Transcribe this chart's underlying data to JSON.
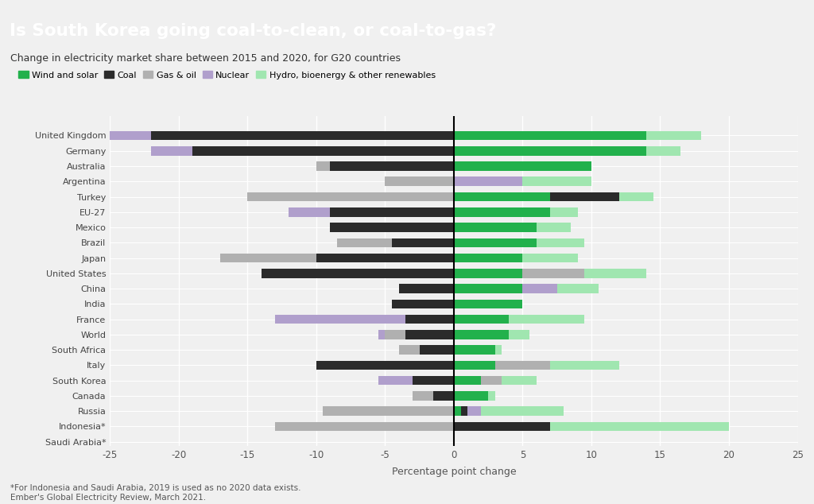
{
  "title": "Is South Korea going coal-to-clean, or coal-to-gas?",
  "subtitle": "Change in electricity market share between 2015 and 2020, for G20 countries",
  "xlabel": "Percentage point change",
  "footnote": "*For Indonesia and Saudi Arabia, 2019 is used as no 2020 data exists.\nEmber's Global Electricity Review, March 2021.",
  "title_bg_color": "#2bb84a",
  "bg_color": "#f0f0f0",
  "plot_bg_color": "#f0f0f0",
  "grid_color": "#ffffff",
  "colors": {
    "wind_solar": "#22b14c",
    "coal": "#2b2b2b",
    "gas_oil": "#b0b0b0",
    "nuclear": "#b09fcc",
    "hydro_bio": "#a0e6b0"
  },
  "countries": [
    "United Kingdom",
    "Germany",
    "Australia",
    "Argentina",
    "Turkey",
    "EU-27",
    "Mexico",
    "Brazil",
    "Japan",
    "United States",
    "China",
    "India",
    "France",
    "World",
    "South Africa",
    "Italy",
    "South Korea",
    "Canada",
    "Russia",
    "Indonesia*",
    "Saudi Arabia*"
  ],
  "raw_data": {
    "United Kingdom": {
      "wind_solar": 14.0,
      "coal": -22.0,
      "gas_oil": 0.0,
      "nuclear": -5.0,
      "hydro_bio": 4.0
    },
    "Germany": {
      "wind_solar": 14.0,
      "coal": -19.0,
      "gas_oil": 0.0,
      "nuclear": -3.0,
      "hydro_bio": 2.5
    },
    "Australia": {
      "wind_solar": 10.0,
      "coal": -9.0,
      "gas_oil": -1.0,
      "nuclear": 0.0,
      "hydro_bio": 0.0
    },
    "Argentina": {
      "wind_solar": 0.0,
      "coal": 0.0,
      "gas_oil": -5.0,
      "nuclear": 5.0,
      "hydro_bio": 5.0
    },
    "Turkey": {
      "wind_solar": 7.0,
      "coal": 5.0,
      "gas_oil": -15.0,
      "nuclear": 0.0,
      "hydro_bio": 2.5
    },
    "EU-27": {
      "wind_solar": 7.0,
      "coal": -9.0,
      "gas_oil": 0.0,
      "nuclear": -3.0,
      "hydro_bio": 2.0
    },
    "Mexico": {
      "wind_solar": 6.0,
      "coal": -9.0,
      "gas_oil": 0.0,
      "nuclear": 0.0,
      "hydro_bio": 2.5
    },
    "Brazil": {
      "wind_solar": 6.0,
      "coal": -4.5,
      "gas_oil": -4.0,
      "nuclear": 0.0,
      "hydro_bio": 3.5
    },
    "Japan": {
      "wind_solar": 5.0,
      "coal": -10.0,
      "gas_oil": -7.0,
      "nuclear": 0.0,
      "hydro_bio": 4.0
    },
    "United States": {
      "wind_solar": 5.0,
      "coal": -14.0,
      "gas_oil": 4.5,
      "nuclear": 0.0,
      "hydro_bio": 4.5
    },
    "China": {
      "wind_solar": 5.0,
      "coal": -4.0,
      "gas_oil": 0.0,
      "nuclear": 2.5,
      "hydro_bio": 3.0
    },
    "India": {
      "wind_solar": 5.0,
      "coal": -4.5,
      "gas_oil": 0.0,
      "nuclear": 0.0,
      "hydro_bio": 0.0
    },
    "France": {
      "wind_solar": 4.0,
      "coal": -3.5,
      "gas_oil": 0.0,
      "nuclear": -9.5,
      "hydro_bio": 5.5
    },
    "World": {
      "wind_solar": 4.0,
      "coal": -3.5,
      "gas_oil": -1.5,
      "nuclear": -0.5,
      "hydro_bio": 1.5
    },
    "South Africa": {
      "wind_solar": 3.0,
      "coal": -2.5,
      "gas_oil": -1.5,
      "nuclear": 0.0,
      "hydro_bio": 0.5
    },
    "Italy": {
      "wind_solar": 3.0,
      "coal": -10.0,
      "gas_oil": 4.0,
      "nuclear": 0.0,
      "hydro_bio": 5.0
    },
    "South Korea": {
      "wind_solar": 2.0,
      "coal": -3.0,
      "gas_oil": 1.5,
      "nuclear": -2.5,
      "hydro_bio": 2.5
    },
    "Canada": {
      "wind_solar": 2.5,
      "coal": -1.5,
      "gas_oil": -1.5,
      "nuclear": 0.0,
      "hydro_bio": 0.5
    },
    "Russia": {
      "wind_solar": 0.5,
      "coal": 0.5,
      "gas_oil": -9.5,
      "nuclear": 1.0,
      "hydro_bio": 6.0
    },
    "Indonesia*": {
      "wind_solar": 0.0,
      "coal": 7.0,
      "gas_oil": -13.0,
      "nuclear": 0.0,
      "hydro_bio": 13.0
    },
    "Saudi Arabia*": {
      "wind_solar": 0.0,
      "coal": 0.0,
      "gas_oil": 0.0,
      "nuclear": 0.0,
      "hydro_bio": 0.0
    }
  },
  "xlim": [
    -25,
    25
  ],
  "xticks": [
    -25,
    -20,
    -15,
    -10,
    -5,
    0,
    5,
    10,
    15,
    20,
    25
  ]
}
